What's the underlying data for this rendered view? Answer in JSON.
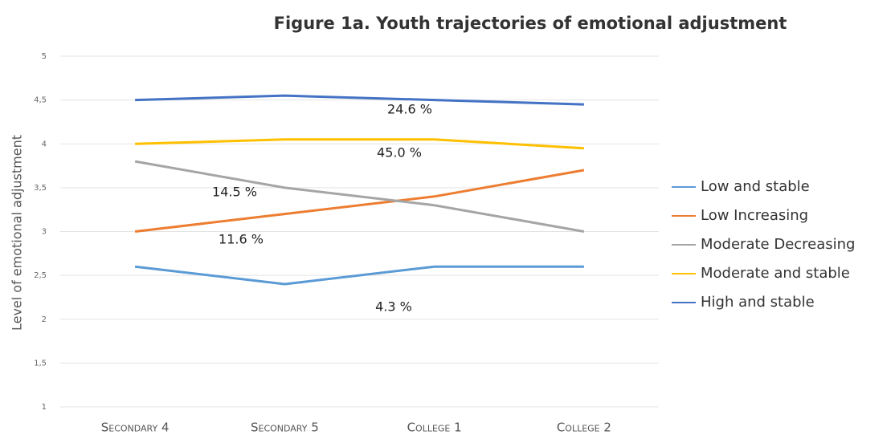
{
  "chart_data": {
    "type": "line",
    "title": "Figure 1a. Youth trajectories of emotional adjustment",
    "y_label": "Level of emotional adjustment",
    "categories": [
      "Secondary 4",
      "Secondary 5",
      "College 1",
      "College 2"
    ],
    "series": [
      {
        "name": "Low and stable",
        "color": "#5b9bd5",
        "values": [
          2.6,
          2.4,
          2.6,
          2.6
        ]
      },
      {
        "name": "Low Increasing",
        "color": "#ed7d31",
        "values": [
          3.0,
          3.2,
          3.4,
          3.7
        ]
      },
      {
        "name": "Moderate Decreasing",
        "color": "#a5a5a5",
        "values": [
          3.8,
          3.5,
          3.3,
          3.0
        ]
      },
      {
        "name": "Moderate and stable",
        "color": "#ffc000",
        "values": [
          4.0,
          4.05,
          4.05,
          3.95
        ]
      },
      {
        "name": "High and stable",
        "color": "#4472c4",
        "values": [
          4.5,
          4.55,
          4.5,
          4.45
        ]
      }
    ],
    "annotations": [
      "24.6 %",
      "45.0 %",
      "14.5 %",
      "11.6 %",
      "4.3 %"
    ],
    "ylim": [
      1,
      5
    ],
    "yticks": [
      1,
      {
        "value": 1.5,
        "label": "1,5"
      },
      2,
      {
        "value": 2.5,
        "label": "2,5"
      },
      3,
      {
        "value": 3.5,
        "label": "3,5"
      },
      4,
      {
        "value": 4.5,
        "label": "4,5"
      },
      5
    ],
    "grid": true,
    "legend": "right"
  }
}
